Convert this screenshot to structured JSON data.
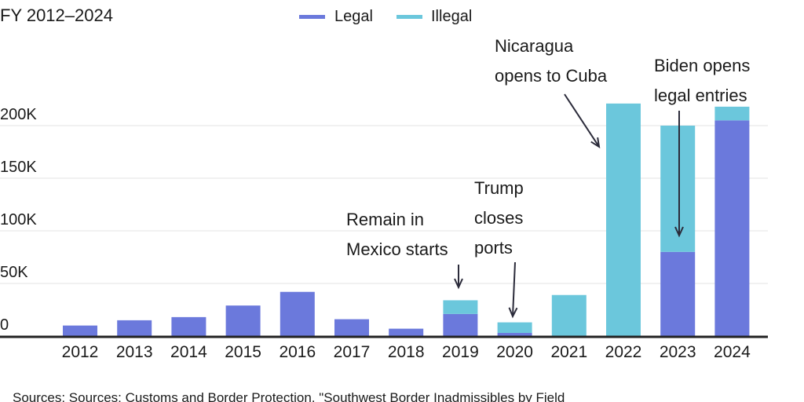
{
  "chart_data": {
    "type": "bar",
    "stacked": true,
    "subtitle": "FY 2012–2024",
    "categories": [
      "2012",
      "2013",
      "2014",
      "2015",
      "2016",
      "2017",
      "2018",
      "2019",
      "2020",
      "2021",
      "2022",
      "2023",
      "2024"
    ],
    "series": [
      {
        "name": "Legal",
        "color": "#6b79dc",
        "values": [
          10000,
          15000,
          18000,
          29000,
          42000,
          16000,
          7000,
          21000,
          3000,
          0,
          0,
          80000,
          205000
        ]
      },
      {
        "name": "Illegal",
        "color": "#6bc7dc",
        "values": [
          0,
          0,
          0,
          0,
          0,
          0,
          0,
          13000,
          10000,
          39000,
          221000,
          120000,
          13000
        ]
      }
    ],
    "ylim": [
      0,
      230000
    ],
    "yticks": [
      {
        "value": 0,
        "label": "0"
      },
      {
        "value": 50000,
        "label": "50K"
      },
      {
        "value": 100000,
        "label": "100K"
      },
      {
        "value": 150000,
        "label": "150K"
      },
      {
        "value": 200000,
        "label": "200K"
      }
    ],
    "grid": true,
    "legend_position": "top",
    "annotations": [
      {
        "lines": [
          "Remain in",
          "Mexico starts"
        ],
        "category": "2019"
      },
      {
        "lines": [
          "Trump",
          "closes",
          "ports"
        ],
        "category": "2020"
      },
      {
        "lines": [
          "Nicaragua",
          "opens to Cuba"
        ],
        "category": "2022"
      },
      {
        "lines": [
          "Biden opens",
          "legal entries"
        ],
        "category": "2023"
      }
    ],
    "source": "Sources: Sources: Customs and Border Protection, \"Southwest Border Inadmissibles by Field"
  }
}
